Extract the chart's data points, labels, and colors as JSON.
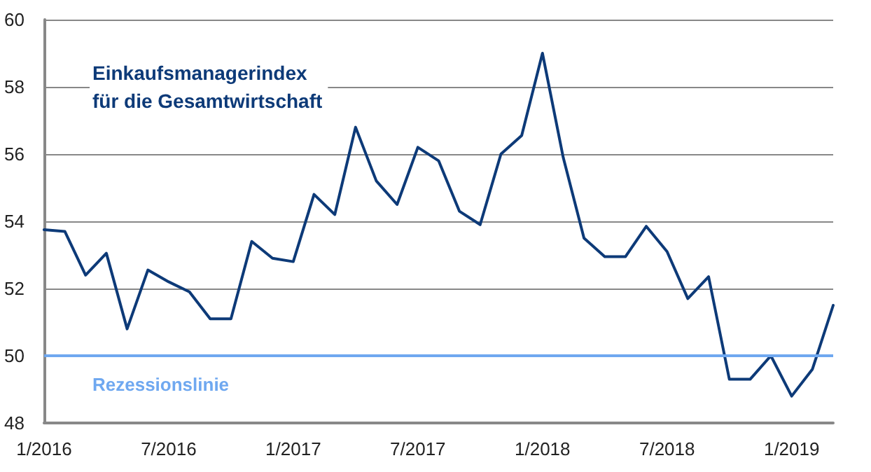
{
  "chart_data": {
    "type": "line",
    "categories": [
      "1/2016",
      null,
      null,
      null,
      null,
      null,
      "7/2016",
      null,
      null,
      null,
      null,
      null,
      "1/2017",
      null,
      null,
      null,
      null,
      null,
      "7/2017",
      null,
      null,
      null,
      null,
      null,
      "1/2018",
      null,
      null,
      null,
      null,
      null,
      "7/2018",
      null,
      null,
      null,
      null,
      null,
      "1/2019",
      null,
      null
    ],
    "series": [
      {
        "name": "Einkaufsmanagerindex\nfür die Gesamtwirtschaft",
        "color": "#0d3a78",
        "values": [
          53.75,
          53.7,
          52.4,
          53.05,
          50.8,
          52.55,
          52.2,
          51.9,
          51.1,
          51.1,
          53.4,
          52.9,
          52.8,
          54.8,
          54.2,
          56.8,
          55.2,
          54.5,
          56.2,
          55.8,
          54.3,
          53.9,
          56.0,
          56.55,
          59.0,
          55.9,
          53.5,
          52.95,
          52.95,
          53.85,
          53.1,
          51.7,
          52.35,
          49.3,
          49.3,
          50.0,
          48.8,
          49.6,
          51.5
        ]
      }
    ],
    "ylim": [
      48,
      60
    ],
    "yticks": [
      48,
      50,
      52,
      54,
      56,
      58,
      60
    ],
    "grid": "y",
    "marker": "none",
    "line_style": "solid",
    "ref_lines": [
      {
        "axis": "y",
        "value": 50,
        "label": "Rezessionslinie",
        "color": "#6fa8f0"
      }
    ]
  }
}
